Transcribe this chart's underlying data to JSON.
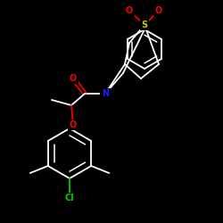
{
  "background_color": "#000000",
  "bond_color": "#ffffff",
  "atom_colors": {
    "O": "#ff0000",
    "N": "#1a1aff",
    "S": "#cccc00",
    "Cl": "#00cc00",
    "C": "#ffffff"
  },
  "figsize": [
    2.5,
    2.5
  ],
  "dpi": 100
}
